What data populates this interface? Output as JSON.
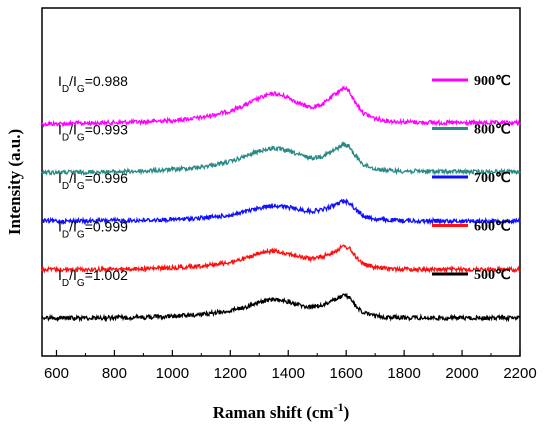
{
  "chart_data": {
    "type": "line",
    "xlabel": "Raman shift (cm",
    "xlabel_sup": "-1",
    "xlabel_close": ")",
    "ylabel": "Intensity (a.u.)",
    "xlim": [
      550,
      2200
    ],
    "xticks": [
      "600",
      "800",
      "1000",
      "1200",
      "1400",
      "1600",
      "1800",
      "2000",
      "2200"
    ],
    "grid": false,
    "legend_position": "right",
    "series": [
      {
        "name": "900℃",
        "color": "#ff00ff",
        "ratio_prefix": "I",
        "ratio_sub1": "D",
        "ratio_slash": "/I",
        "ratio_sub2": "G",
        "ratio_value": "=0.988",
        "offset": 4.0,
        "x": [
          550,
          700,
          800,
          900,
          1000,
          1100,
          1200,
          1250,
          1300,
          1350,
          1400,
          1450,
          1480,
          1520,
          1560,
          1590,
          1610,
          1630,
          1660,
          1700,
          1750,
          1800,
          1900,
          2000,
          2100,
          2200
        ],
        "y": [
          0.0,
          0.02,
          0.04,
          0.06,
          0.1,
          0.18,
          0.36,
          0.52,
          0.72,
          0.85,
          0.74,
          0.52,
          0.46,
          0.55,
          0.82,
          1.0,
          0.92,
          0.62,
          0.3,
          0.15,
          0.08,
          0.06,
          0.04,
          0.03,
          0.03,
          0.03
        ]
      },
      {
        "name": "800℃",
        "color": "#2a8a87",
        "ratio_prefix": "I",
        "ratio_sub1": "D",
        "ratio_slash": "/I",
        "ratio_sub2": "G",
        "ratio_value": "=0.993",
        "offset": 3.0,
        "x": [
          550,
          700,
          800,
          900,
          1000,
          1100,
          1200,
          1250,
          1300,
          1350,
          1400,
          1450,
          1480,
          1520,
          1560,
          1590,
          1610,
          1630,
          1660,
          1700,
          1750,
          1800,
          1900,
          2000,
          2100,
          2200
        ],
        "y": [
          0.0,
          0.01,
          0.02,
          0.04,
          0.08,
          0.15,
          0.3,
          0.44,
          0.6,
          0.68,
          0.6,
          0.46,
          0.4,
          0.46,
          0.62,
          0.78,
          0.72,
          0.48,
          0.22,
          0.1,
          0.05,
          0.04,
          0.03,
          0.02,
          0.02,
          0.02
        ]
      },
      {
        "name": "700℃",
        "color": "#1010ff",
        "ratio_prefix": "I",
        "ratio_sub1": "D",
        "ratio_slash": "/I",
        "ratio_sub2": "G",
        "ratio_value": "=0.996",
        "offset": 2.0,
        "x": [
          550,
          700,
          800,
          900,
          1000,
          1100,
          1200,
          1250,
          1300,
          1350,
          1400,
          1450,
          1480,
          1520,
          1560,
          1590,
          1610,
          1630,
          1660,
          1700,
          1750,
          1800,
          1900,
          2000,
          2100,
          2200
        ],
        "y": [
          0.0,
          0.0,
          0.01,
          0.02,
          0.04,
          0.08,
          0.16,
          0.25,
          0.36,
          0.44,
          0.38,
          0.3,
          0.27,
          0.32,
          0.44,
          0.56,
          0.52,
          0.34,
          0.14,
          0.05,
          0.02,
          0.01,
          0.0,
          0.0,
          0.0,
          0.0
        ]
      },
      {
        "name": "600℃",
        "color": "#ff1010",
        "ratio_prefix": "I",
        "ratio_sub1": "D",
        "ratio_slash": "/I",
        "ratio_sub2": "G",
        "ratio_value": "=0.999",
        "offset": 1.0,
        "x": [
          550,
          700,
          800,
          900,
          1000,
          1100,
          1200,
          1250,
          1300,
          1350,
          1400,
          1450,
          1480,
          1520,
          1560,
          1590,
          1610,
          1630,
          1660,
          1700,
          1750,
          1800,
          1900,
          2000,
          2100,
          2200
        ],
        "y": [
          0.0,
          0.0,
          0.01,
          0.02,
          0.05,
          0.1,
          0.2,
          0.3,
          0.44,
          0.52,
          0.44,
          0.33,
          0.3,
          0.36,
          0.5,
          0.64,
          0.6,
          0.38,
          0.15,
          0.05,
          0.02,
          0.01,
          0.0,
          0.0,
          0.0,
          0.0
        ]
      },
      {
        "name": "500℃",
        "color": "#000000",
        "ratio_prefix": "I",
        "ratio_sub1": "D",
        "ratio_slash": "/I",
        "ratio_sub2": "G",
        "ratio_value": "=1.002",
        "offset": 0.0,
        "x": [
          550,
          700,
          800,
          900,
          1000,
          1100,
          1200,
          1250,
          1300,
          1350,
          1400,
          1450,
          1480,
          1520,
          1560,
          1590,
          1610,
          1630,
          1660,
          1700,
          1750,
          1800,
          1900,
          2000,
          2100,
          2200
        ],
        "y": [
          0.0,
          0.0,
          0.01,
          0.02,
          0.05,
          0.1,
          0.2,
          0.3,
          0.44,
          0.52,
          0.45,
          0.33,
          0.3,
          0.36,
          0.5,
          0.62,
          0.58,
          0.36,
          0.14,
          0.05,
          0.02,
          0.01,
          0.0,
          0.0,
          0.0,
          0.0
        ]
      }
    ]
  }
}
